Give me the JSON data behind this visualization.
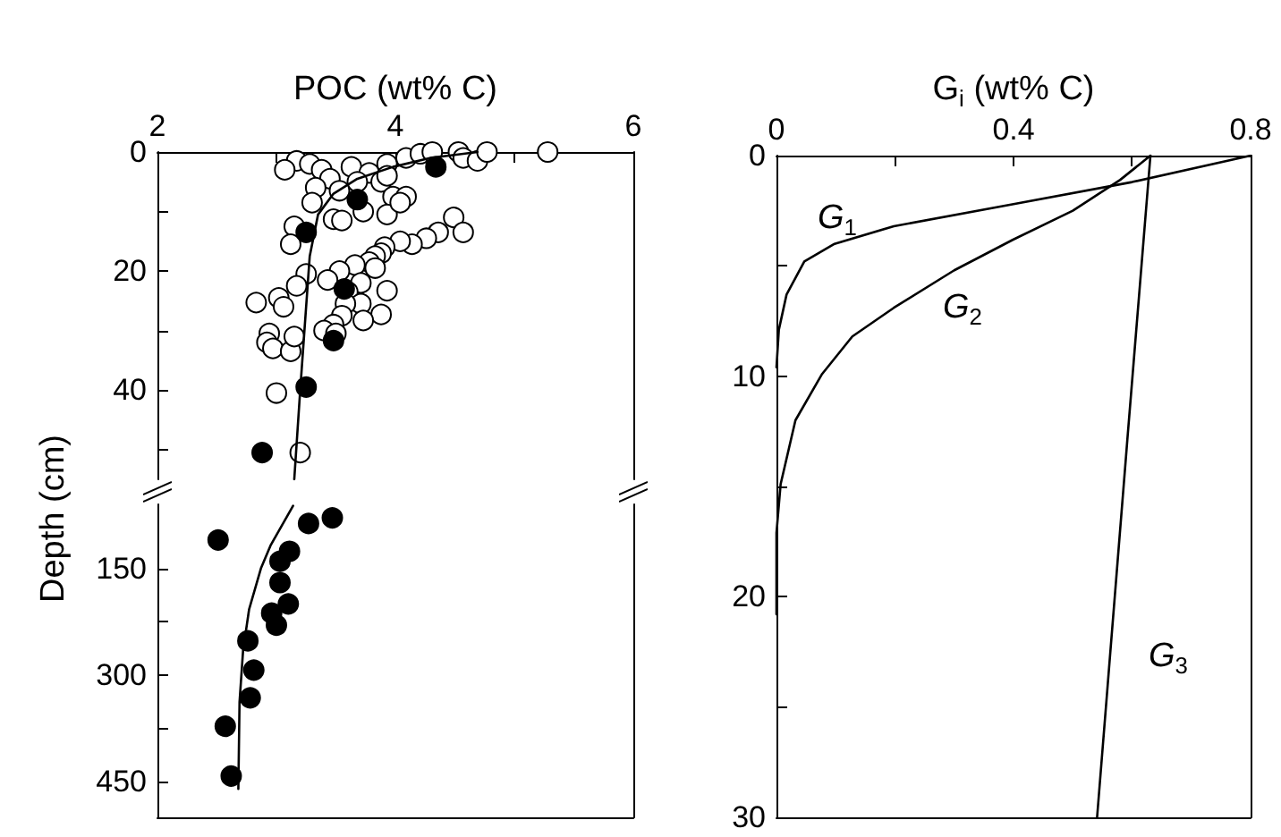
{
  "chart_data": [
    {
      "type": "scatter",
      "title": "POC (wt% C)",
      "xlim": [
        2,
        6
      ],
      "xticks": [
        2,
        {
          "value": 3,
          "label": null
        },
        4,
        {
          "value": 5,
          "label": null
        },
        6
      ],
      "ylim": [
        55,
        0
      ],
      "yticks": [
        0,
        {
          "value": 10,
          "label": null
        },
        20,
        {
          "value": 30,
          "label": null
        },
        40,
        {
          "value": 50,
          "label": null
        }
      ],
      "marker": "circle",
      "series": [
        {
          "color": "#ffffff",
          "x": [
            3.17,
            3.28,
            3.07,
            3.38,
            3.63,
            3.78,
            3.93,
            4.09,
            4.21,
            4.31,
            4.53,
            4.57,
            4.69,
            4.77,
            5.28,
            3.45,
            3.68,
            3.88,
            3.33,
            3.53,
            3.93,
            3.98,
            4.09,
            3.3,
            3.73,
            3.93,
            3.48,
            3.55,
            4.04,
            3.15,
            3.12,
            4.49,
            4.57,
            4.36,
            4.26,
            4.14,
            4.04,
            3.91,
            3.88,
            3.83,
            3.78,
            3.83,
            3.66,
            3.53,
            3.43,
            3.25,
            3.17,
            3.71,
            3.93,
            3.6,
            3.71,
            3.58,
            3.88,
            3.73,
            3.55,
            3.48,
            3.4,
            3.5,
            2.83,
            3.02,
            3.06,
            2.94,
            2.92,
            2.97,
            3.12,
            3.15,
            3.0,
            3.2
          ],
          "values": [
            1.5,
            2,
            3,
            3,
            2.5,
            3.5,
            2,
            1,
            0.3,
            0,
            0,
            1,
            1.5,
            0,
            0,
            4.5,
            5,
            5,
            6,
            6.5,
            4,
            7.5,
            7.5,
            8.5,
            10,
            10.5,
            11.3,
            11.5,
            8.5,
            12.5,
            15.5,
            11,
            13.5,
            13.5,
            14.5,
            15.5,
            15,
            16,
            17,
            17.5,
            18.5,
            19.5,
            19,
            20,
            21.5,
            20.5,
            22.5,
            22,
            23.3,
            23.5,
            25.5,
            25.5,
            27.3,
            28.3,
            27.5,
            29,
            30,
            30.5,
            25.3,
            24.5,
            26,
            30.5,
            32,
            33,
            33.5,
            31,
            40.5,
            50.5
          ]
        },
        {
          "color": "#000000",
          "x": [
            4.34,
            3.68,
            3.25,
            3.57,
            3.48,
            3.25,
            2.88
          ],
          "values": [
            2.5,
            8,
            13.5,
            23,
            31.7,
            39.5,
            50.5
          ]
        },
        {
          "type": "line",
          "marker": "none",
          "color": "#000000",
          "x": [
            3.15,
            3.2,
            3.28,
            3.35,
            3.48,
            3.68,
            3.98,
            4.29,
            4.69
          ],
          "values": [
            55,
            40,
            17.5,
            10.5,
            7,
            4.5,
            2.5,
            1,
            0
          ]
        }
      ]
    },
    {
      "type": "scatter",
      "ylabel": "Depth (cm)",
      "xlim": [
        2,
        6
      ],
      "ylim": [
        500,
        60
      ],
      "yticks": [
        150,
        {
          "value": 225,
          "label": null
        },
        300,
        {
          "value": 375,
          "label": null
        },
        450
      ],
      "tick_labels": "y",
      "marker": "circle",
      "series": [
        {
          "color": "#000000",
          "x": [
            2.51,
            3.27,
            3.47,
            3.11,
            3.03,
            3.03,
            3.1,
            2.96,
            3.0,
            2.76,
            2.81,
            2.78,
            2.57,
            2.62
          ],
          "values": [
            110,
            87,
            79,
            126,
            140,
            170,
            200,
            213,
            230,
            252,
            293,
            332,
            372,
            442
          ]
        },
        {
          "type": "line",
          "marker": "none",
          "color": "#000000",
          "x": [
            3.14,
            2.95,
            2.87,
            2.77,
            2.72,
            2.69,
            2.68
          ],
          "values": [
            62,
            118,
            150,
            208,
            265,
            338,
            460
          ]
        }
      ]
    },
    {
      "type": "line",
      "title": "G$_{i}$ (wt% C)",
      "xlim": [
        0,
        0.8
      ],
      "xticks": [
        0,
        {
          "value": 0.2,
          "label": null
        },
        0.4,
        {
          "value": 0.6,
          "label": null
        },
        0.8
      ],
      "ylim": [
        30,
        0
      ],
      "yticks": [
        0,
        {
          "value": 5,
          "label": null
        },
        10,
        {
          "value": 15,
          "label": null
        },
        20,
        {
          "value": 25,
          "label": null
        },
        30
      ],
      "marker": "none",
      "annotations": [
        "G$_{1}$",
        "G$_{2}$",
        "G$_{3}$"
      ],
      "series": [
        {
          "color": "#000000",
          "x": [
            0.8,
            0.6,
            0.4,
            0.198,
            0.098,
            0.047,
            0.017,
            0.004,
            0
          ],
          "values": [
            0,
            1.2,
            2.2,
            3.2,
            4.0,
            4.8,
            6.3,
            7.9,
            9.6
          ]
        },
        {
          "color": "#000000",
          "x": [
            0.631,
            0.58,
            0.5,
            0.4,
            0.3,
            0.198,
            0.128,
            0.077,
            0.032,
            0.007,
            0,
            0
          ],
          "values": [
            0,
            1.1,
            2.5,
            3.8,
            5.2,
            6.9,
            8.2,
            9.9,
            12,
            14.9,
            17.1,
            20.8
          ]
        },
        {
          "color": "#000000",
          "x": [
            0.631,
            0.592,
            0.541
          ],
          "values": [
            0,
            12.9,
            30
          ]
        }
      ]
    }
  ]
}
